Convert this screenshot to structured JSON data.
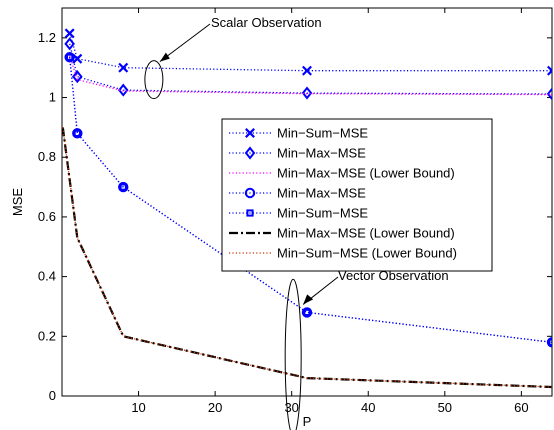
{
  "chart_data": {
    "type": "line",
    "title": "",
    "xlabel": "P",
    "ylabel": "MSE",
    "xlim": [
      0,
      64
    ],
    "ylim": [
      0,
      1.3
    ],
    "xticks": [
      10,
      20,
      30,
      40,
      50,
      60
    ],
    "yticks": [
      0,
      0.2,
      0.4,
      0.6,
      0.8,
      1,
      1.2
    ],
    "xtick_labels": [
      "10",
      "20",
      "30",
      "40",
      "50",
      "60"
    ],
    "ytick_labels": [
      "0",
      "0.2",
      "0.4",
      "0.6",
      "0.8",
      "1",
      "1.2"
    ],
    "grid": false,
    "legend_position": "center-right",
    "series": [
      {
        "name": "Min−Sum−MSE",
        "color": "#0000ff",
        "linestyle": "dotted",
        "marker": "x",
        "x": [
          1,
          2,
          8,
          32,
          64
        ],
        "y": [
          1.215,
          1.13,
          1.1,
          1.09,
          1.09
        ]
      },
      {
        "name": "Min−Max−MSE",
        "color": "#0000ff",
        "linestyle": "dotted",
        "marker": "diamond",
        "x": [
          1,
          2,
          8,
          32,
          64
        ],
        "y": [
          1.18,
          1.07,
          1.025,
          1.015,
          1.012
        ]
      },
      {
        "name": "Min−Max−MSE (Lower Bound)",
        "color": "#ff00ff",
        "linestyle": "dotted",
        "marker": "none",
        "x": [
          1,
          2,
          8,
          32,
          64
        ],
        "y": [
          1.14,
          1.06,
          1.022,
          1.013,
          1.01
        ]
      },
      {
        "name": "Min−Max−MSE",
        "color": "#0000ff",
        "linestyle": "dotted",
        "marker": "circle",
        "x": [
          1,
          2,
          8,
          32,
          64
        ],
        "y": [
          1.135,
          0.88,
          0.7,
          0.28,
          0.18
        ]
      },
      {
        "name": "Min−Sum−MSE",
        "color": "#0000ff",
        "linestyle": "dotted",
        "marker": "square",
        "x": [
          1,
          2,
          8,
          32,
          64
        ],
        "y": [
          1.135,
          0.88,
          0.7,
          0.28,
          0.18
        ]
      },
      {
        "name": "Min−Max−MSE (Lower Bound)",
        "color": "#000000",
        "linestyle": "dashdot",
        "marker": "none",
        "x": [
          0.1,
          2,
          8,
          32,
          64
        ],
        "y": [
          0.9,
          0.53,
          0.2,
          0.06,
          0.03
        ]
      },
      {
        "name": "Min−Sum−MSE (Lower Bound)",
        "color": "#cc3300",
        "linestyle": "dotted",
        "marker": "none",
        "x": [
          0.1,
          2,
          8,
          32,
          64
        ],
        "y": [
          0.9,
          0.53,
          0.2,
          0.06,
          0.03
        ]
      }
    ],
    "annotations": [
      {
        "text": "Scalar Observation",
        "ellipse_center": [
          12,
          1.06
        ],
        "target": [
          12,
          1.06
        ]
      },
      {
        "text": "Vector Observation",
        "ellipse_center": [
          31.5,
          0.14
        ],
        "target": [
          31.5,
          0.28
        ]
      }
    ]
  }
}
